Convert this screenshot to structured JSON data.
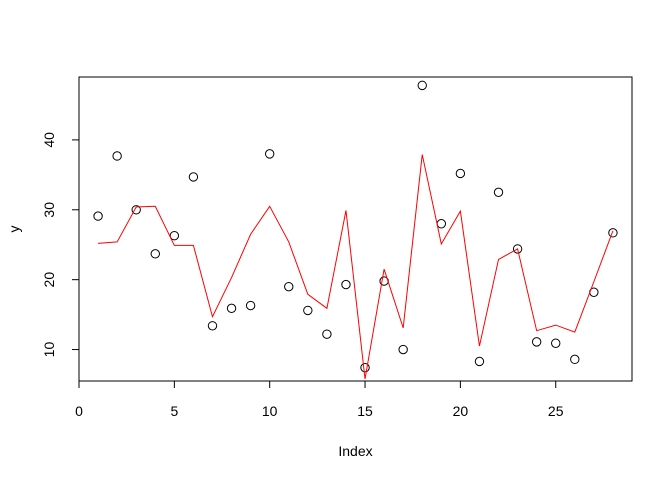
{
  "chart_data": {
    "type": "scatter",
    "xlabel": "Index",
    "ylabel": "y",
    "xlim": [
      0,
      29
    ],
    "ylim": [
      5.5,
      49
    ],
    "x_ticks": [
      0,
      5,
      10,
      15,
      20,
      25
    ],
    "y_ticks": [
      10,
      20,
      30,
      40
    ],
    "grid": false,
    "series": [
      {
        "style": "points",
        "marker": "open-circle",
        "color": "#000000",
        "x": [
          1,
          2,
          3,
          4,
          5,
          6,
          7,
          8,
          9,
          10,
          11,
          12,
          13,
          14,
          15,
          16,
          17,
          18,
          19,
          20,
          21,
          22,
          23,
          24,
          25,
          26,
          27,
          28
        ],
        "y": [
          29.1,
          37.7,
          30.0,
          23.7,
          26.3,
          34.7,
          13.4,
          15.9,
          16.3,
          38.0,
          19.0,
          15.6,
          12.2,
          19.3,
          7.4,
          19.8,
          10.0,
          47.8,
          28.0,
          35.2,
          8.3,
          32.5,
          24.4,
          11.1,
          10.9,
          8.6,
          18.2,
          26.7
        ]
      },
      {
        "style": "line",
        "color": "#ff0000",
        "x": [
          1,
          2,
          3,
          4,
          5,
          6,
          7,
          8,
          9,
          10,
          11,
          12,
          13,
          14,
          15,
          16,
          17,
          18,
          19,
          20,
          21,
          22,
          23,
          24,
          25,
          26,
          27,
          28
        ],
        "y": [
          25.2,
          25.4,
          30.4,
          30.5,
          24.9,
          24.9,
          14.7,
          20.3,
          26.5,
          30.5,
          25.4,
          17.9,
          15.9,
          29.9,
          5.8,
          21.5,
          13.1,
          37.9,
          25.1,
          29.8,
          10.5,
          22.9,
          24.4,
          12.7,
          13.5,
          12.5,
          19.7,
          27.0
        ]
      }
    ]
  }
}
